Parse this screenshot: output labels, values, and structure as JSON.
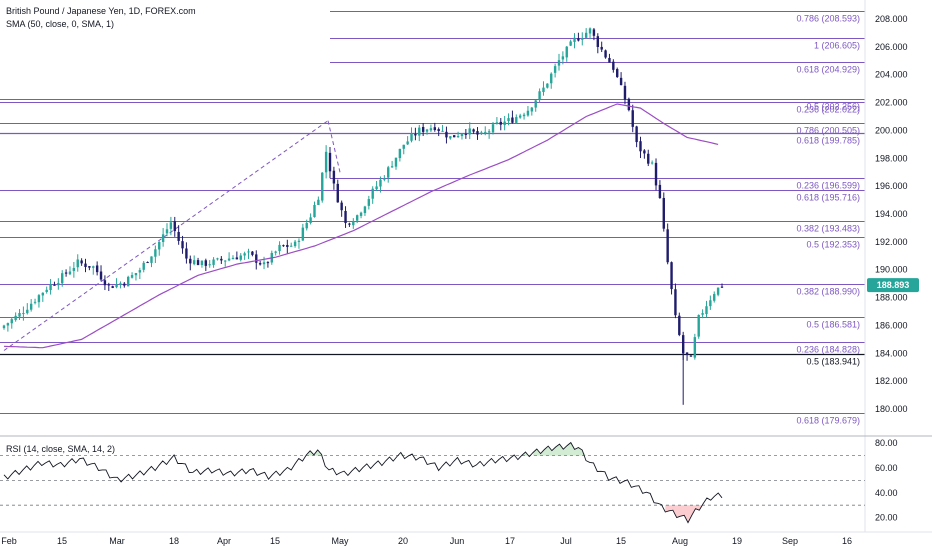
{
  "header": {
    "symbol_line": "British Pound / Japanese Yen, 1D, FOREX.com",
    "sma_line": "SMA (50, close, 0, SMA, 1)"
  },
  "rsi_panel": {
    "label": "RSI (14, close, SMA, 14, 2)",
    "ticks": [
      "80.00",
      "60.00",
      "40.00",
      "20.00"
    ]
  },
  "price_axis": {
    "ticks": [
      "208.000",
      "206.000",
      "204.000",
      "202.000",
      "200.000",
      "198.000",
      "196.000",
      "194.000",
      "192.000",
      "190.000",
      "188.000",
      "186.000",
      "184.000",
      "182.000",
      "180.000"
    ],
    "last_price": "188.893"
  },
  "time_axis": {
    "labels": [
      "Feb",
      "15",
      "Mar",
      "18",
      "Apr",
      "15",
      "May",
      "20",
      "Jun",
      "17",
      "Jul",
      "15",
      "Aug",
      "19",
      "Sep",
      "16"
    ]
  },
  "fib_levels": [
    {
      "label": "0.786 (208.593)",
      "color": "#7e57c2"
    },
    {
      "label": "1 (206.605)",
      "color": "#7e57c2"
    },
    {
      "label": "0.618 (204.929)",
      "color": "#7e57c2"
    },
    {
      "label": "0.5 (202.256)",
      "color": "#7e57c2"
    },
    {
      "label": "0.236 (202.022)",
      "color": "#7e57c2"
    },
    {
      "label": "0.786 (200.505)",
      "color": "#7e57c2"
    },
    {
      "label": "0.618 (199.785)",
      "color": "#7e57c2"
    },
    {
      "label": "0.236 (196.599)",
      "color": "#7e57c2"
    },
    {
      "label": "0.618 (195.716)",
      "color": "#7e57c2"
    },
    {
      "label": "0.382 (193.483)",
      "color": "#7e57c2"
    },
    {
      "label": "0.5 (192.353)",
      "color": "#7e57c2"
    },
    {
      "label": "0.382 (188.990)",
      "color": "#7e57c2"
    },
    {
      "label": "0.5 (186.581)",
      "color": "#7e57c2"
    },
    {
      "label": "0.236 (184.828)",
      "color": "#7e57c2"
    },
    {
      "label": "0.5 (183.941)",
      "color": "#131722"
    },
    {
      "label": "0.618 (179.679)",
      "color": "#7e57c2"
    }
  ],
  "colors": {
    "up": "#26a69a",
    "down": "#1f1c6b",
    "sma": "#9c4dc4",
    "fib": "#7e57c2",
    "rsi_line": "#131722",
    "rsi_overbought": "#4caf50",
    "rsi_oversold": "#f23645",
    "last_price_bg": "#26a69a"
  },
  "chart_data": [
    {
      "type": "candlestick",
      "title": "British Pound / Japanese Yen, 1D, FOREX.com",
      "y_scale_ticks": [
        208,
        206,
        204,
        202,
        200,
        198,
        196,
        194,
        192,
        190,
        188,
        186,
        184,
        182,
        180
      ],
      "x_labels": [
        "Feb",
        "15",
        "Mar",
        "18",
        "Apr",
        "15",
        "May",
        "20",
        "Jun",
        "17",
        "Jul",
        "15",
        "Aug",
        "19",
        "Sep",
        "16"
      ],
      "ylim": [
        179.0,
        208.9
      ],
      "close_anchors": [
        [
          0,
          186.0
        ],
        [
          2,
          186.4
        ],
        [
          4,
          186.8
        ],
        [
          7,
          187.6
        ],
        [
          11,
          188.7
        ],
        [
          15,
          189.5
        ],
        [
          19,
          190.5
        ],
        [
          23,
          190.2
        ],
        [
          27,
          188.8
        ],
        [
          31,
          189.1
        ],
        [
          35,
          190.0
        ],
        [
          39,
          191.5
        ],
        [
          43,
          193.4
        ],
        [
          47,
          190.8
        ],
        [
          51,
          190.4
        ],
        [
          55,
          190.6
        ],
        [
          59,
          190.9
        ],
        [
          63,
          191.1
        ],
        [
          67,
          190.3
        ],
        [
          71,
          191.6
        ],
        [
          75,
          191.8
        ],
        [
          79,
          193.9
        ],
        [
          81,
          195.3
        ],
        [
          83,
          198.5
        ],
        [
          85,
          196.0
        ],
        [
          88,
          193.3
        ],
        [
          91,
          193.9
        ],
        [
          95,
          195.6
        ],
        [
          99,
          197.2
        ],
        [
          103,
          199.0
        ],
        [
          107,
          200.0
        ],
        [
          111,
          200.3
        ],
        [
          115,
          199.5
        ],
        [
          119,
          200.0
        ],
        [
          123,
          199.6
        ],
        [
          127,
          200.4
        ],
        [
          131,
          200.8
        ],
        [
          135,
          201.5
        ],
        [
          139,
          203.0
        ],
        [
          143,
          205.0
        ],
        [
          147,
          206.5
        ],
        [
          151,
          207.2
        ],
        [
          153,
          206.2
        ],
        [
          157,
          204.5
        ],
        [
          161,
          201.5
        ],
        [
          163,
          199.0
        ],
        [
          167,
          197.5
        ],
        [
          169,
          195.0
        ],
        [
          171,
          190.5
        ],
        [
          173,
          186.5
        ],
        [
          175,
          184.0
        ],
        [
          177,
          183.5
        ],
        [
          179,
          186.5
        ],
        [
          181,
          187.5
        ],
        [
          183,
          188.4
        ],
        [
          185,
          188.9
        ]
      ],
      "sma50_anchors": [
        [
          0,
          184.5
        ],
        [
          10,
          184.4
        ],
        [
          20,
          185.0
        ],
        [
          30,
          186.6
        ],
        [
          40,
          188.2
        ],
        [
          50,
          189.6
        ],
        [
          60,
          190.4
        ],
        [
          70,
          190.9
        ],
        [
          80,
          191.7
        ],
        [
          90,
          192.8
        ],
        [
          100,
          194.2
        ],
        [
          110,
          195.6
        ],
        [
          120,
          196.8
        ],
        [
          130,
          197.9
        ],
        [
          140,
          199.3
        ],
        [
          150,
          201.0
        ],
        [
          158,
          201.9
        ],
        [
          164,
          201.6
        ],
        [
          170,
          200.5
        ],
        [
          176,
          199.5
        ],
        [
          184,
          199.0
        ]
      ],
      "last_price": 188.893
    },
    {
      "type": "line",
      "title": "RSI (14, close, SMA, 14, 2)",
      "ylim": [
        10,
        85
      ],
      "y_ticks": [
        80,
        60,
        40,
        20
      ],
      "bands": [
        70,
        50,
        30
      ],
      "rsi_anchors": [
        [
          0,
          52
        ],
        [
          5,
          58
        ],
        [
          10,
          64
        ],
        [
          15,
          62
        ],
        [
          20,
          67
        ],
        [
          25,
          60
        ],
        [
          30,
          50
        ],
        [
          35,
          54
        ],
        [
          40,
          60
        ],
        [
          45,
          68
        ],
        [
          50,
          56
        ],
        [
          55,
          58
        ],
        [
          60,
          55
        ],
        [
          65,
          58
        ],
        [
          70,
          53
        ],
        [
          75,
          58
        ],
        [
          80,
          70
        ],
        [
          83,
          74
        ],
        [
          86,
          58
        ],
        [
          90,
          55
        ],
        [
          95,
          60
        ],
        [
          100,
          64
        ],
        [
          105,
          70
        ],
        [
          110,
          68
        ],
        [
          115,
          60
        ],
        [
          120,
          66
        ],
        [
          125,
          62
        ],
        [
          130,
          66
        ],
        [
          135,
          68
        ],
        [
          140,
          72
        ],
        [
          145,
          76
        ],
        [
          150,
          78
        ],
        [
          152,
          76
        ],
        [
          155,
          64
        ],
        [
          160,
          52
        ],
        [
          165,
          48
        ],
        [
          170,
          40
        ],
        [
          174,
          28
        ],
        [
          178,
          22
        ],
        [
          181,
          18
        ],
        [
          184,
          28
        ],
        [
          187,
          36
        ],
        [
          190,
          38
        ]
      ]
    }
  ]
}
